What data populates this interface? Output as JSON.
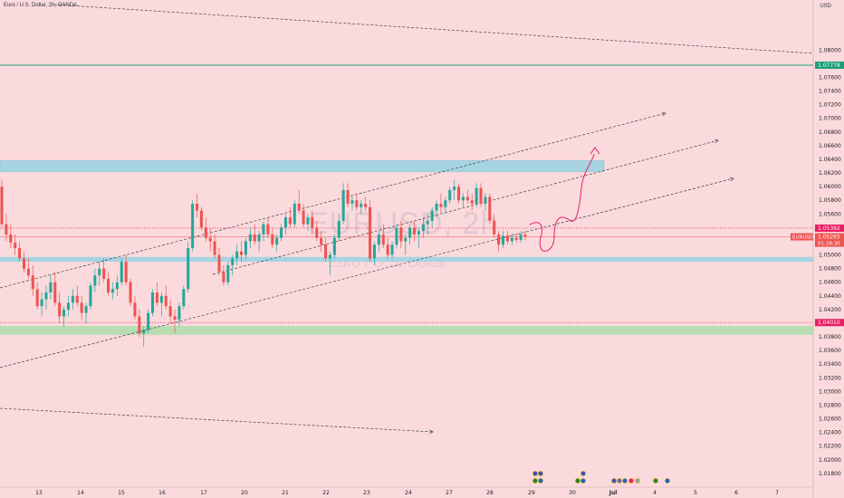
{
  "header": {
    "title": "Euro / U.S. Dollar, 2h, OANDA"
  },
  "currency": "USD",
  "watermark": {
    "symbol": "EURUSD, 2h",
    "name": "Euro / U.S. Dollar"
  },
  "chart_data": {
    "type": "candlestick",
    "ylim": [
      1.016,
      1.086
    ],
    "y_ticks": [
      1.08,
      1.078,
      1.076,
      1.074,
      1.072,
      1.07,
      1.068,
      1.066,
      1.064,
      1.062,
      1.06,
      1.058,
      1.056,
      1.054,
      1.052,
      1.05,
      1.048,
      1.046,
      1.044,
      1.042,
      1.04,
      1.038,
      1.036,
      1.034,
      1.032,
      1.03,
      1.028,
      1.026,
      1.024,
      1.022,
      1.02,
      1.018
    ],
    "x_ticks": [
      "13",
      "14",
      "15",
      "16",
      "17",
      "20",
      "21",
      "22",
      "23",
      "24",
      "27",
      "28",
      "29",
      "30",
      "Jul",
      "4",
      "5",
      "6",
      "7"
    ],
    "colors": {
      "up": "#26a69a",
      "down": "#ef5350",
      "zone_blue": "#a6d4e2",
      "zone_green": "#b9ddb3",
      "accent_red": "#e91e63"
    },
    "price_labels": [
      {
        "id": "resistance",
        "value": "1.07778",
        "color": "#1b9e77"
      },
      {
        "id": "dotted_high",
        "value": "1.05392",
        "color": "#e91e63"
      },
      {
        "id": "current",
        "symbol": "EURUSD",
        "value": "1.05265",
        "time": "01:28:30",
        "color": "#ef5350"
      },
      {
        "id": "dotted_low",
        "value": "1.04010",
        "color": "#e91e63"
      }
    ],
    "candles": [
      [
        1.06,
        1.061,
        1.054,
        1.0545
      ],
      [
        1.0545,
        1.056,
        1.052,
        1.053
      ],
      [
        1.053,
        1.0545,
        1.051,
        1.0518
      ],
      [
        1.0518,
        1.053,
        1.05,
        1.051
      ],
      [
        1.051,
        1.052,
        1.049,
        1.0495
      ],
      [
        1.0495,
        1.0505,
        1.0475,
        1.048
      ],
      [
        1.048,
        1.0495,
        1.0465,
        1.047
      ],
      [
        1.047,
        1.0485,
        1.044,
        1.045
      ],
      [
        1.045,
        1.046,
        1.042,
        1.0425
      ],
      [
        1.0425,
        1.0445,
        1.041,
        1.0435
      ],
      [
        1.0435,
        1.0455,
        1.042,
        1.0445
      ],
      [
        1.0445,
        1.047,
        1.0435,
        1.046
      ],
      [
        1.046,
        1.0475,
        1.0425,
        1.043
      ],
      [
        1.043,
        1.0445,
        1.04,
        1.041
      ],
      [
        1.041,
        1.0425,
        1.0395,
        1.042
      ],
      [
        1.042,
        1.044,
        1.041,
        1.043
      ],
      [
        1.043,
        1.045,
        1.042,
        1.044
      ],
      [
        1.044,
        1.0455,
        1.0425,
        1.043
      ],
      [
        1.043,
        1.044,
        1.0405,
        1.0415
      ],
      [
        1.0415,
        1.043,
        1.04,
        1.0425
      ],
      [
        1.0425,
        1.046,
        1.042,
        1.0455
      ],
      [
        1.0455,
        1.048,
        1.0445,
        1.047
      ],
      [
        1.047,
        1.049,
        1.0455,
        1.048
      ],
      [
        1.048,
        1.0495,
        1.046,
        1.0465
      ],
      [
        1.0465,
        1.0475,
        1.044,
        1.0445
      ],
      [
        1.0445,
        1.046,
        1.0435,
        1.045
      ],
      [
        1.045,
        1.047,
        1.044,
        1.046
      ],
      [
        1.046,
        1.0495,
        1.0455,
        1.049
      ],
      [
        1.049,
        1.05,
        1.0455,
        1.046
      ],
      [
        1.046,
        1.0465,
        1.0425,
        1.043
      ],
      [
        1.043,
        1.044,
        1.0405,
        1.041
      ],
      [
        1.041,
        1.042,
        1.038,
        1.0385
      ],
      [
        1.0385,
        1.0395,
        1.0365,
        1.039
      ],
      [
        1.039,
        1.042,
        1.0385,
        1.0415
      ],
      [
        1.0415,
        1.045,
        1.041,
        1.0445
      ],
      [
        1.0445,
        1.046,
        1.0425,
        1.043
      ],
      [
        1.043,
        1.0445,
        1.041,
        1.044
      ],
      [
        1.044,
        1.0455,
        1.042,
        1.0425
      ],
      [
        1.0425,
        1.0435,
        1.04,
        1.041
      ],
      [
        1.041,
        1.042,
        1.0385,
        1.0405
      ],
      [
        1.0405,
        1.043,
        1.0395,
        1.0425
      ],
      [
        1.0425,
        1.0455,
        1.042,
        1.045
      ],
      [
        1.045,
        1.052,
        1.0445,
        1.051
      ],
      [
        1.051,
        1.058,
        1.0505,
        1.0575
      ],
      [
        1.0575,
        1.059,
        1.0555,
        1.0565
      ],
      [
        1.0565,
        1.057,
        1.0535,
        1.054
      ],
      [
        1.054,
        1.0555,
        1.052,
        1.0525
      ],
      [
        1.0525,
        1.054,
        1.0505,
        1.052
      ],
      [
        1.052,
        1.053,
        1.0495,
        1.05
      ],
      [
        1.05,
        1.051,
        1.047,
        1.0475
      ],
      [
        1.0475,
        1.0485,
        1.0455,
        1.046
      ],
      [
        1.046,
        1.049,
        1.0455,
        1.0485
      ],
      [
        1.0485,
        1.05,
        1.047,
        1.0495
      ],
      [
        1.0495,
        1.0515,
        1.0485,
        1.0505
      ],
      [
        1.0505,
        1.052,
        1.049,
        1.05
      ],
      [
        1.05,
        1.0525,
        1.0495,
        1.052
      ],
      [
        1.052,
        1.054,
        1.051,
        1.053
      ],
      [
        1.053,
        1.0545,
        1.0515,
        1.052
      ],
      [
        1.052,
        1.0535,
        1.0505,
        1.053
      ],
      [
        1.053,
        1.055,
        1.052,
        1.0545
      ],
      [
        1.0545,
        1.0555,
        1.0525,
        1.053
      ],
      [
        1.053,
        1.054,
        1.051,
        1.0515
      ],
      [
        1.0515,
        1.053,
        1.0505,
        1.0525
      ],
      [
        1.0525,
        1.0545,
        1.052,
        1.054
      ],
      [
        1.054,
        1.056,
        1.053,
        1.0555
      ],
      [
        1.0555,
        1.057,
        1.054,
        1.0545
      ],
      [
        1.0545,
        1.058,
        1.054,
        1.0575
      ],
      [
        1.0575,
        1.0595,
        1.056,
        1.0565
      ],
      [
        1.0565,
        1.0575,
        1.054,
        1.0545
      ],
      [
        1.0545,
        1.056,
        1.0535,
        1.0555
      ],
      [
        1.0555,
        1.0565,
        1.053,
        1.054
      ],
      [
        1.054,
        1.055,
        1.052,
        1.0525
      ],
      [
        1.0525,
        1.0535,
        1.0505,
        1.0515
      ],
      [
        1.0515,
        1.0525,
        1.049,
        1.0495
      ],
      [
        1.0495,
        1.0505,
        1.047,
        1.05
      ],
      [
        1.05,
        1.053,
        1.0495,
        1.0525
      ],
      [
        1.0525,
        1.056,
        1.052,
        1.055
      ],
      [
        1.055,
        1.0605,
        1.0545,
        1.0595
      ],
      [
        1.0595,
        1.0605,
        1.057,
        1.0575
      ],
      [
        1.0575,
        1.0585,
        1.0565,
        1.058
      ],
      [
        1.058,
        1.059,
        1.0565,
        1.057
      ],
      [
        1.057,
        1.058,
        1.056,
        1.0575
      ],
      [
        1.0575,
        1.0585,
        1.0565,
        1.057
      ],
      [
        1.057,
        1.058,
        1.049,
        1.0495
      ],
      [
        1.0495,
        1.052,
        1.0485,
        1.0515
      ],
      [
        1.0515,
        1.0535,
        1.0505,
        1.053
      ],
      [
        1.053,
        1.0545,
        1.051,
        1.0515
      ],
      [
        1.0515,
        1.0525,
        1.0495,
        1.05
      ],
      [
        1.05,
        1.052,
        1.0495,
        1.0515
      ],
      [
        1.0515,
        1.0545,
        1.051,
        1.054
      ],
      [
        1.054,
        1.055,
        1.051,
        1.052
      ],
      [
        1.052,
        1.053,
        1.05,
        1.0525
      ],
      [
        1.0525,
        1.0545,
        1.0515,
        1.054
      ],
      [
        1.054,
        1.055,
        1.052,
        1.053
      ],
      [
        1.053,
        1.054,
        1.051,
        1.0535
      ],
      [
        1.0535,
        1.0555,
        1.0525,
        1.0545
      ],
      [
        1.0545,
        1.056,
        1.053,
        1.055
      ],
      [
        1.055,
        1.057,
        1.054,
        1.0565
      ],
      [
        1.0565,
        1.058,
        1.0555,
        1.0575
      ],
      [
        1.0575,
        1.059,
        1.056,
        1.057
      ],
      [
        1.057,
        1.0585,
        1.056,
        1.058
      ],
      [
        1.058,
        1.06,
        1.0575,
        1.0595
      ],
      [
        1.0595,
        1.061,
        1.058,
        1.06
      ],
      [
        1.06,
        1.0605,
        1.0575,
        1.058
      ],
      [
        1.058,
        1.059,
        1.057,
        1.0585
      ],
      [
        1.0585,
        1.0595,
        1.0575,
        1.058
      ],
      [
        1.058,
        1.059,
        1.0565,
        1.0575
      ],
      [
        1.0575,
        1.0605,
        1.057,
        1.0598
      ],
      [
        1.0598,
        1.0605,
        1.057,
        1.0575
      ],
      [
        1.0575,
        1.059,
        1.0565,
        1.0585
      ],
      [
        1.0585,
        1.059,
        1.0545,
        1.055
      ],
      [
        1.055,
        1.056,
        1.0525,
        1.053
      ],
      [
        1.053,
        1.0535,
        1.0505,
        1.0515
      ],
      [
        1.0515,
        1.0535,
        1.051,
        1.0528
      ],
      [
        1.0528,
        1.0535,
        1.0515,
        1.052
      ],
      [
        1.052,
        1.0532,
        1.0515,
        1.0525
      ],
      [
        1.0525,
        1.0532,
        1.0518,
        1.0522
      ],
      [
        1.0522,
        1.0535,
        1.0518,
        1.053
      ],
      [
        1.053,
        1.0536,
        1.0522,
        1.0527
      ]
    ]
  }
}
